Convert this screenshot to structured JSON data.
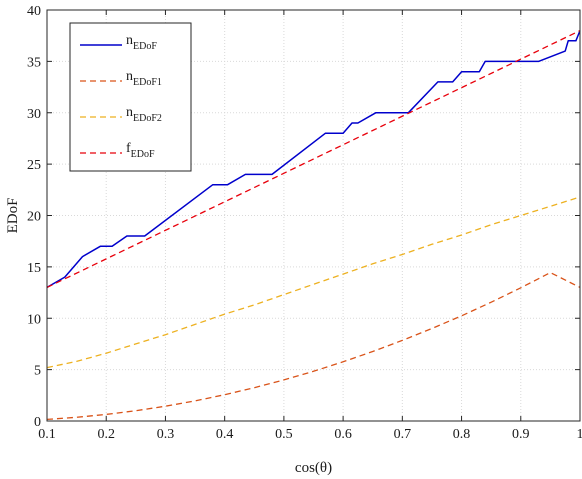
{
  "chart_data": {
    "type": "line",
    "xlabel": "cos(θ)",
    "ylabel": "EDoF",
    "xlim": [
      0.1,
      1
    ],
    "ylim": [
      0,
      40
    ],
    "x_ticks": [
      "0.1",
      "0.2",
      "0.3",
      "0.4",
      "0.5",
      "0.6",
      "0.7",
      "0.8",
      "0.9",
      "1"
    ],
    "y_ticks": [
      "0",
      "5",
      "10",
      "15",
      "20",
      "25",
      "30",
      "35",
      "40"
    ],
    "grid": true,
    "legend_position": "top-left",
    "series": [
      {
        "name": "n",
        "subscript": "EDoF",
        "color": "#0000cc",
        "dash": "solid",
        "x": [
          0.1,
          0.13,
          0.16,
          0.19,
          0.21,
          0.235,
          0.245,
          0.265,
          0.38,
          0.395,
          0.405,
          0.435,
          0.45,
          0.48,
          0.57,
          0.585,
          0.6,
          0.615,
          0.625,
          0.655,
          0.665,
          0.68,
          0.71,
          0.76,
          0.775,
          0.785,
          0.8,
          0.81,
          0.83,
          0.84,
          0.86,
          0.87,
          0.89,
          0.9,
          0.925,
          0.93,
          0.975,
          0.98,
          0.993,
          1.0
        ],
        "y": [
          13,
          14,
          16,
          17,
          17,
          18,
          18,
          18,
          23,
          23,
          23,
          24,
          24,
          24,
          28,
          28,
          28,
          29,
          29,
          30,
          30,
          30,
          30,
          33,
          33,
          33,
          34,
          34,
          34,
          35,
          35,
          35,
          35,
          35,
          35,
          35,
          36,
          37,
          37,
          38
        ]
      },
      {
        "name": "n",
        "subscript": "EDoF1",
        "color": "#d95319",
        "dash": "dashed",
        "x": [
          0.1,
          0.15,
          0.2,
          0.25,
          0.3,
          0.35,
          0.4,
          0.45,
          0.5,
          0.55,
          0.6,
          0.65,
          0.7,
          0.75,
          0.8,
          0.85,
          0.9,
          0.95,
          1.0
        ],
        "y": [
          0.16,
          0.36,
          0.64,
          1.0,
          1.44,
          1.96,
          2.56,
          3.24,
          4.0,
          4.84,
          5.76,
          6.76,
          7.84,
          9.0,
          10.24,
          11.56,
          12.96,
          14.44,
          13.0
        ]
      },
      {
        "name": "n",
        "subscript": "EDoF2",
        "color": "#edb120",
        "dash": "dashed",
        "x": [
          0.1,
          0.15,
          0.2,
          0.25,
          0.3,
          0.35,
          0.4,
          0.45,
          0.5,
          0.55,
          0.6,
          0.65,
          0.7,
          0.75,
          0.8,
          0.85,
          0.9,
          0.95,
          1.0
        ],
        "y": [
          5.2,
          5.8,
          6.6,
          7.5,
          8.4,
          9.4,
          10.4,
          11.3,
          12.3,
          13.3,
          14.3,
          15.3,
          16.2,
          17.2,
          18.1,
          19.1,
          20.0,
          20.9,
          21.8
        ]
      },
      {
        "name": "f",
        "subscript": "EDoF",
        "color": "#e8000b",
        "dash": "dashed",
        "x": [
          0.1,
          1.0
        ],
        "y": [
          13,
          38
        ]
      }
    ]
  }
}
